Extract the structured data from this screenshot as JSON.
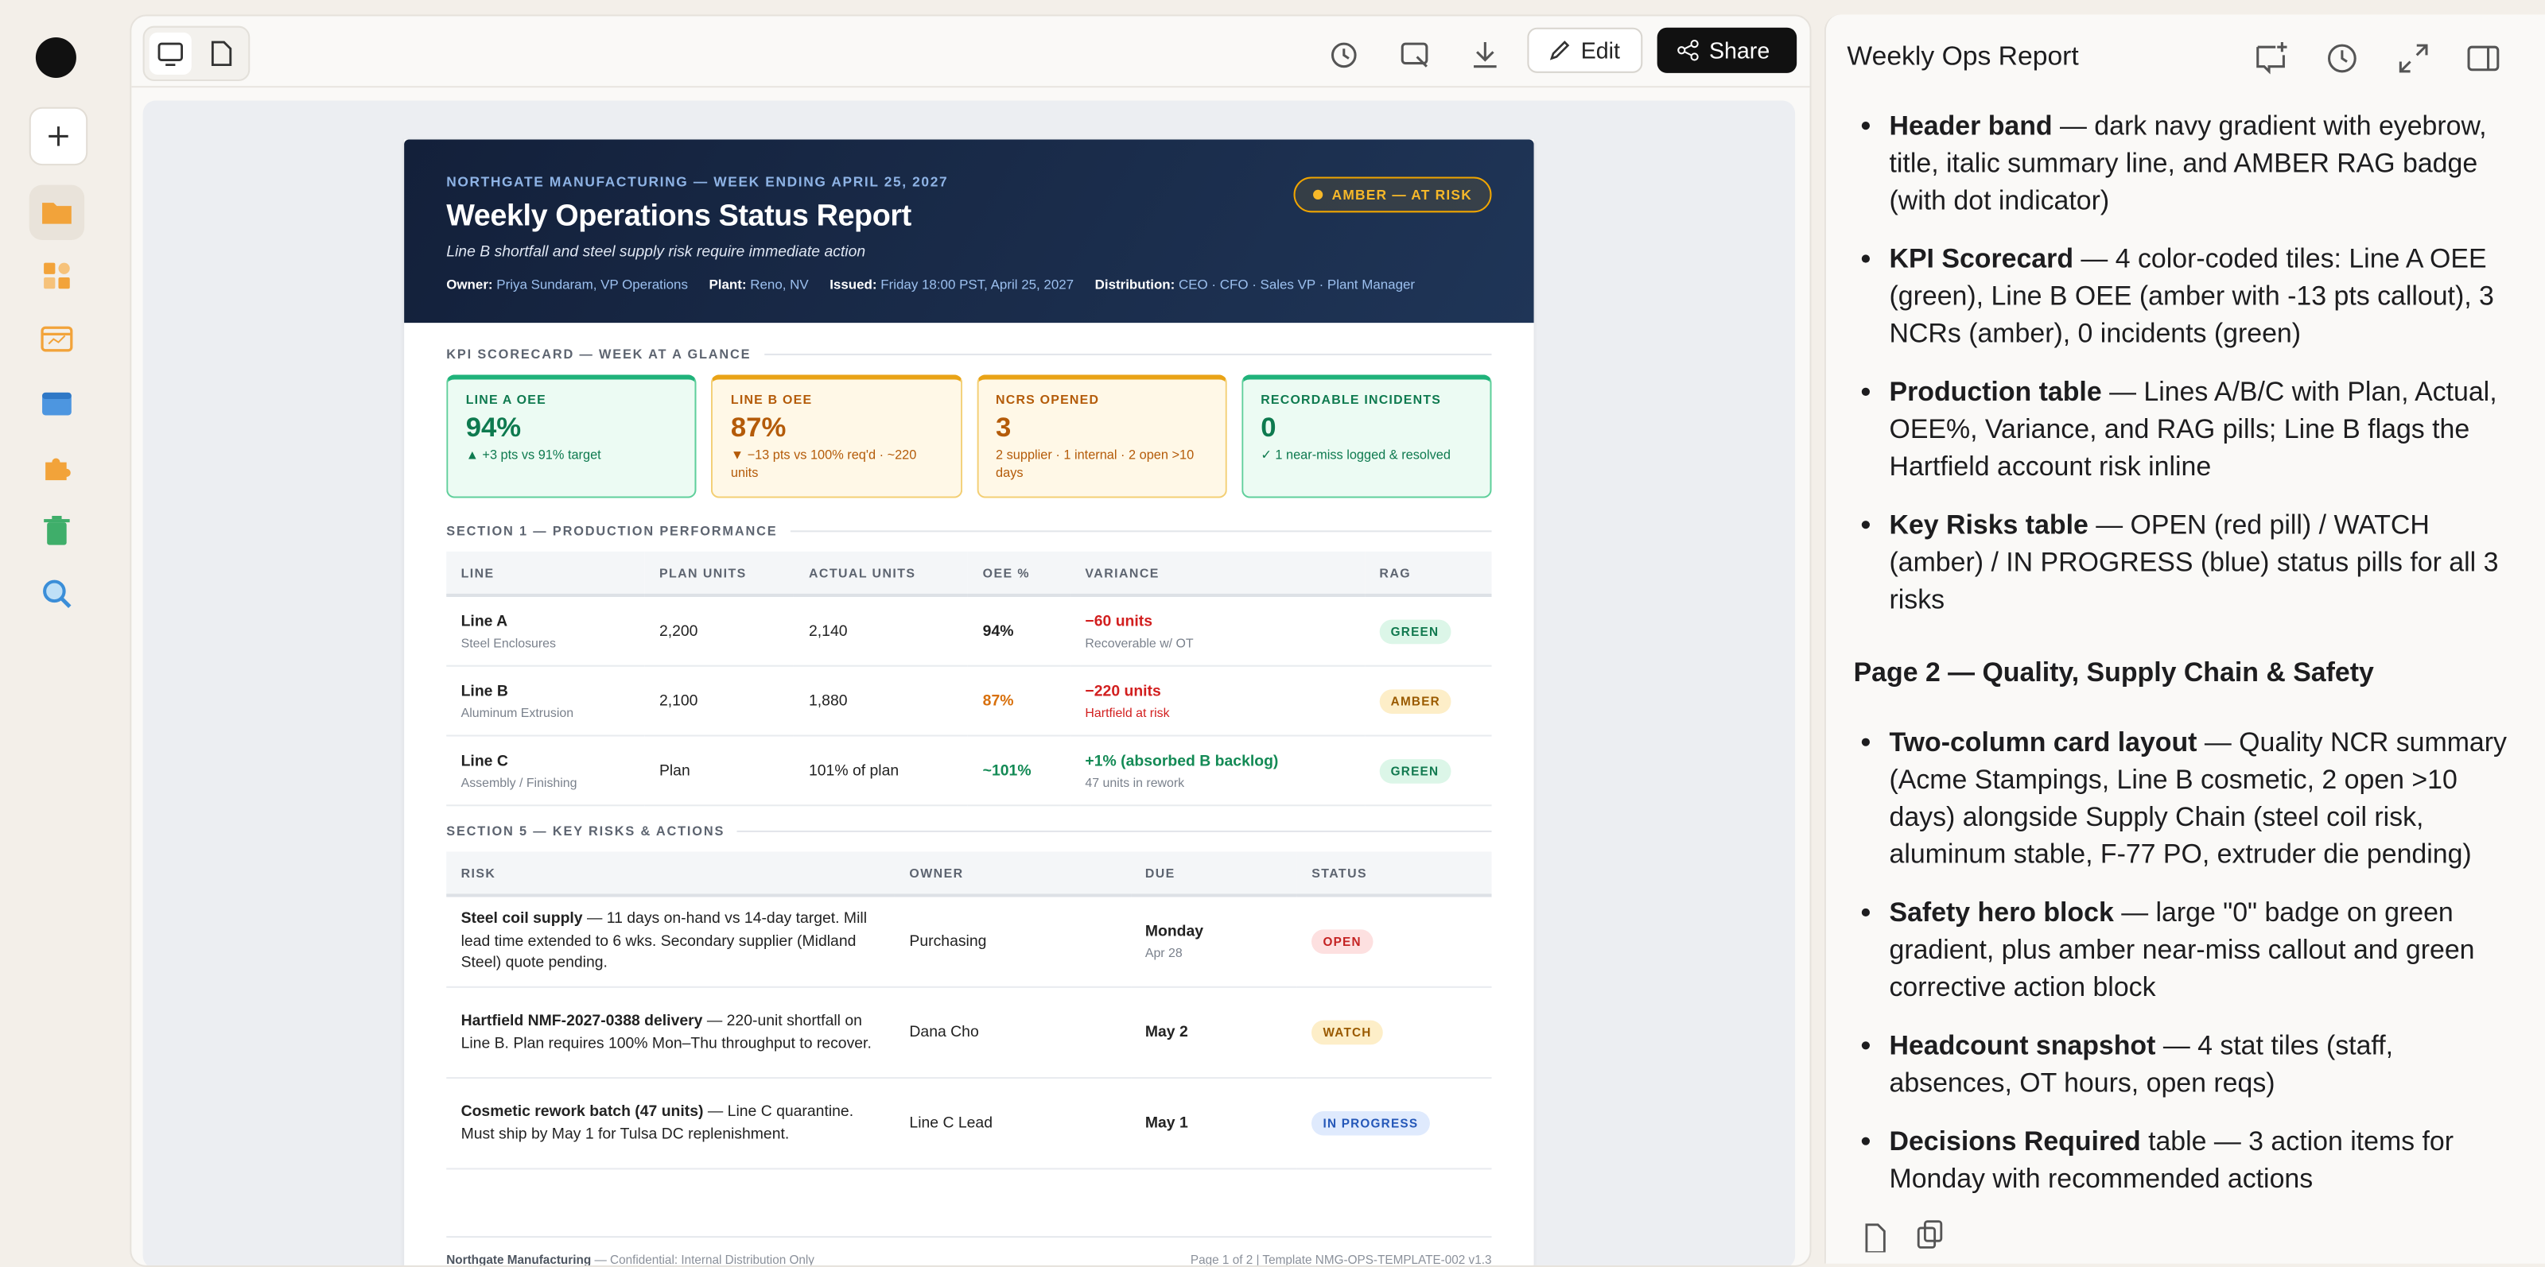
{
  "toolbar": {
    "edit": "Edit",
    "share": "Share"
  },
  "report": {
    "eyebrow": "NORTHGATE MANUFACTURING — WEEK ENDING APRIL 25, 2027",
    "title": "Weekly Operations Status Report",
    "summary": "Line B shortfall and steel supply risk require immediate action",
    "badge": "AMBER — AT RISK",
    "meta": [
      {
        "label": "Owner:",
        "value": "Priya Sundaram, VP Operations"
      },
      {
        "label": "Plant:",
        "value": "Reno, NV"
      },
      {
        "label": "Issued:",
        "value": "Friday 18:00 PST, April 25, 2027"
      },
      {
        "label": "Distribution:",
        "value": "CEO · CFO · Sales VP · Plant Manager"
      }
    ],
    "kpi": {
      "heading": "KPI SCORECARD — WEEK AT A GLANCE",
      "tiles": [
        {
          "label": "LINE A OEE",
          "value": "94%",
          "note": "▲ +3 pts vs 91% target"
        },
        {
          "label": "LINE B OEE",
          "value": "87%",
          "note": "▼ −13 pts vs 100% req'd · ~220 units"
        },
        {
          "label": "NCRS OPENED",
          "value": "3",
          "note": "2 supplier · 1 internal · 2 open >10 days"
        },
        {
          "label": "RECORDABLE INCIDENTS",
          "value": "0",
          "note": "✓ 1 near-miss logged & resolved"
        }
      ]
    },
    "production": {
      "heading": "SECTION 1 — PRODUCTION PERFORMANCE",
      "columns": [
        "LINE",
        "PLAN UNITS",
        "ACTUAL UNITS",
        "OEE %",
        "VARIANCE",
        "RAG"
      ],
      "rows": [
        {
          "line": "Line A",
          "sub": "Steel Enclosures",
          "plan": "2,200",
          "actual": "2,140",
          "oee": "94%",
          "variance": "−60 units",
          "variance_note": "Recoverable w/ OT",
          "rag": "GREEN"
        },
        {
          "line": "Line B",
          "sub": "Aluminum Extrusion",
          "plan": "2,100",
          "actual": "1,880",
          "oee": "87%",
          "variance": "−220 units",
          "variance_note": "Hartfield at risk",
          "rag": "AMBER"
        },
        {
          "line": "Line C",
          "sub": "Assembly / Finishing",
          "plan": "Plan",
          "actual": "101% of plan",
          "oee": "~101%",
          "variance": "+1% (absorbed B backlog)",
          "variance_note": "47 units in rework",
          "rag": "GREEN"
        }
      ]
    },
    "risks": {
      "heading": "SECTION 5 — KEY RISKS & ACTIONS",
      "columns": [
        "RISK",
        "OWNER",
        "DUE",
        "STATUS"
      ],
      "rows": [
        {
          "title": "Steel coil supply",
          "text": " — 11 days on-hand vs 14-day target. Mill lead time extended to 6 wks. Secondary supplier (Midland Steel) quote pending.",
          "owner": "Purchasing",
          "due": "Monday",
          "due_note": "Apr 28",
          "status": "OPEN"
        },
        {
          "title": "Hartfield NMF-2027-0388 delivery",
          "text": " — 220-unit shortfall on Line B. Plan requires 100% Mon–Thu throughput to recover.",
          "owner": "Dana Cho",
          "due": "May 2",
          "status": "WATCH"
        },
        {
          "title": "Cosmetic rework batch (47 units)",
          "text": " — Line C quarantine. Must ship by May 1 for Tulsa DC replenishment.",
          "owner": "Line C Lead",
          "due": "May 1",
          "status": "IN PROGRESS"
        }
      ]
    },
    "footer": {
      "left": "Northgate Manufacturing",
      "left_note": " — Confidential: Internal Distribution Only",
      "right": "Page 1 of 2  |  Template NMG-OPS-TEMPLATE-002 v1.3"
    }
  },
  "panel": {
    "title": "Weekly Ops Report",
    "items": [
      {
        "term": "Header band",
        "text": " — dark navy gradient with eyebrow, title, italic summary line, and AMBER RAG badge (with dot indicator)"
      },
      {
        "term": "KPI Scorecard",
        "text": " — 4 color-coded tiles: Line A OEE (green), Line B OEE (amber with -13 pts callout), 3 NCRs (amber), 0 incidents (green)"
      },
      {
        "term": "Production table",
        "text": " — Lines A/B/C with Plan, Actual, OEE%, Variance, and RAG pills; Line B flags the Hartfield account risk inline"
      },
      {
        "term": "Key Risks table",
        "text": " — OPEN (red pill) / WATCH (amber) / IN PROGRESS (blue) status pills for all 3 risks"
      }
    ],
    "heading": "Page 2 — Quality, Supply Chain & Safety",
    "items2": [
      {
        "term": "Two-column card layout",
        "text": " — Quality NCR summary (Acme Stampings, Line B cosmetic, 2 open >10 days) alongside Supply Chain (steel coil risk, aluminum stable, F-77 PO, extruder die pending)"
      },
      {
        "term": "Safety hero block",
        "text": " — large \"0\" badge on green gradient, plus amber near-miss callout and green corrective action block"
      },
      {
        "term": "Headcount snapshot",
        "text": " — 4 stat tiles (staff, absences, OT hours, open reqs)"
      },
      {
        "term": "Decisions Required",
        "text": " table — 3 action items for Monday with recommended actions"
      }
    ]
  }
}
